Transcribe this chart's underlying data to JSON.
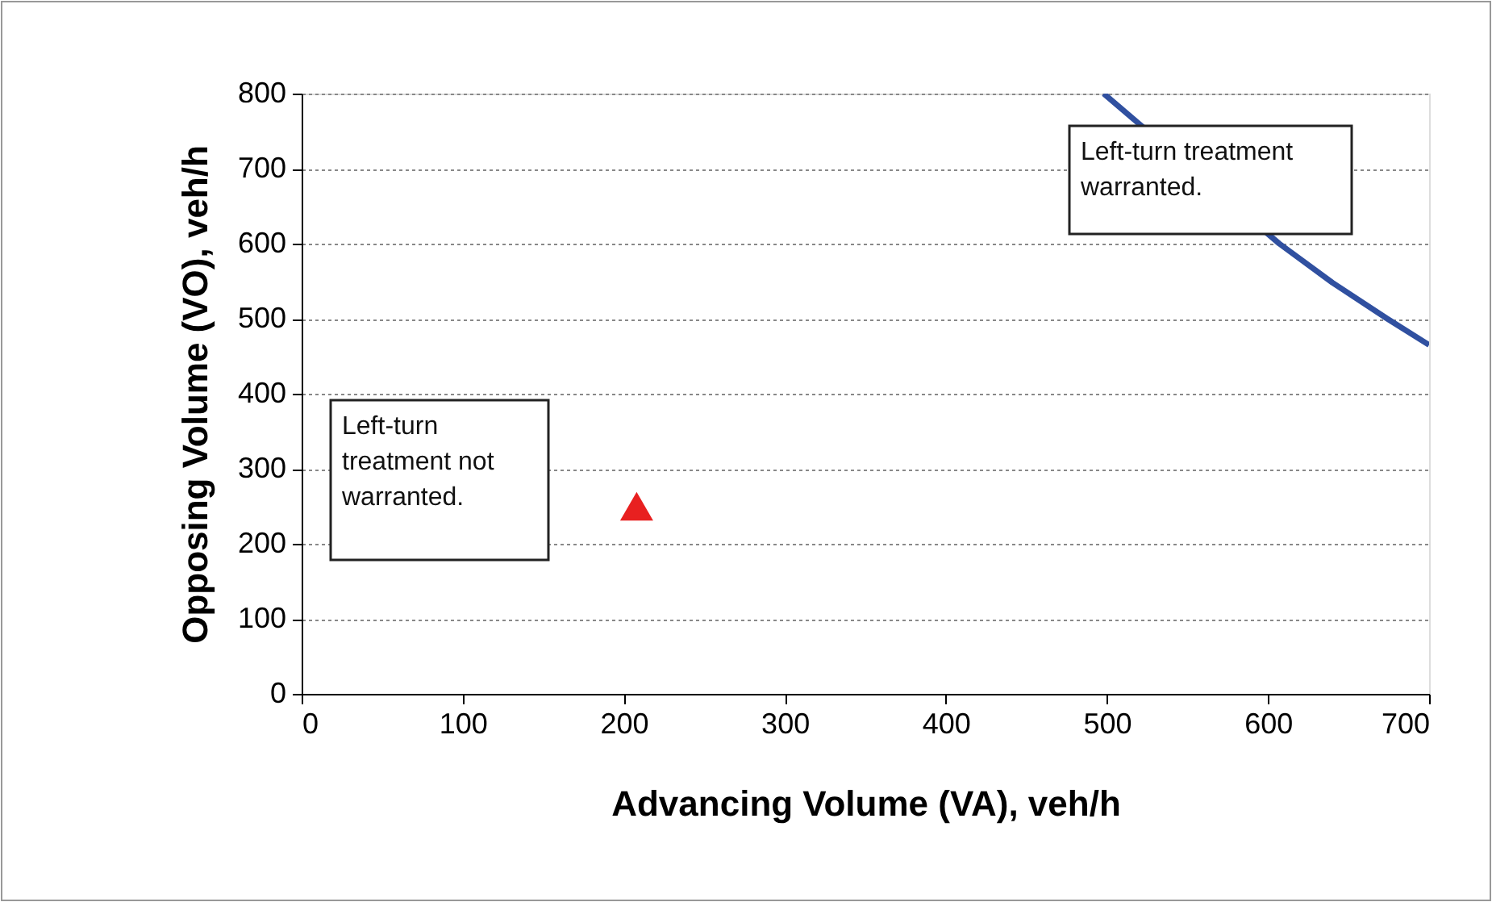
{
  "chart_data": {
    "type": "line",
    "xlabel": "Advancing Volume (VA), veh/h",
    "ylabel": "Opposing Volume (VO), veh/h",
    "xlim": [
      0,
      700
    ],
    "xticks": [
      0,
      100,
      200,
      300,
      400,
      500,
      600,
      700
    ],
    "ylim": [
      0,
      800
    ],
    "yticks": [
      0,
      100,
      200,
      300,
      400,
      500,
      600,
      700,
      800
    ],
    "grid": "y",
    "legend": false,
    "series": [
      {
        "color": "#3050a0",
        "line_style": "solid",
        "x": [
          498,
          607,
          640,
          674,
          700
        ],
        "values": [
          800,
          600,
          548,
          500,
          465
        ]
      },
      {
        "type": "scatter",
        "marker": "triangle",
        "color": "#e82020",
        "x": [
          208
        ],
        "values": [
          250
        ]
      }
    ],
    "annotations": [
      "Left-turn treatment warranted.",
      "Left-turn treatment not warranted."
    ]
  }
}
